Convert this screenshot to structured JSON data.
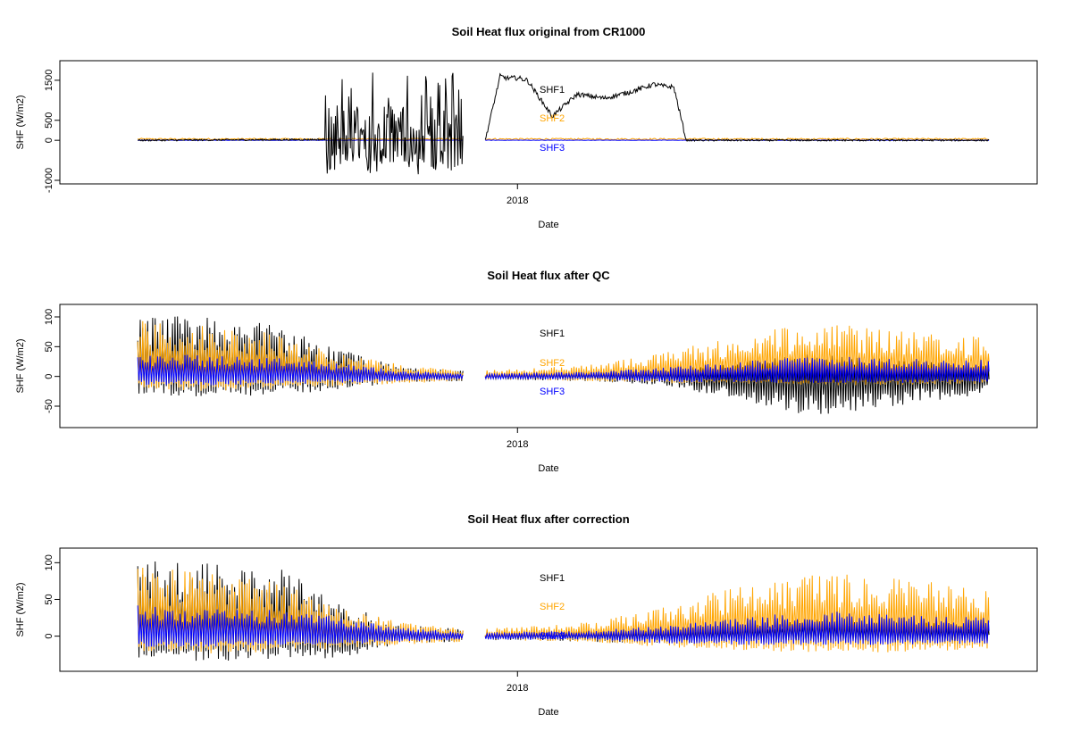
{
  "chart_data": [
    {
      "type": "line",
      "title": "Soil Heat flux original from CR1000",
      "xlabel": "Date",
      "ylabel": "SHF (W/m2)",
      "xlim": [
        "2017-07-15",
        "2018-07-15"
      ],
      "x_ticks": [
        {
          "value": "2018-01-01",
          "label": "2018"
        }
      ],
      "ylim": [
        -1000,
        1900
      ],
      "y_ticks": [
        {
          "value": -1000,
          "label": "-1000"
        },
        {
          "value": 0,
          "label": "0"
        },
        {
          "value": 500,
          "label": "500"
        },
        {
          "value": 1500,
          "label": "1500"
        }
      ],
      "legend": {
        "placement": "center",
        "entries": [
          {
            "label": "SHF1",
            "color": "#000000"
          },
          {
            "label": "SHF2",
            "color": "#FFA500"
          },
          {
            "label": "SHF3",
            "color": "#0000FF"
          }
        ]
      },
      "gaps": [
        [
          "2017-12-10",
          "2017-12-19"
        ]
      ],
      "series": [
        {
          "name": "SHF1",
          "color": "#000000",
          "amplitude_note": "raw",
          "x": [
            "2017-08-01",
            "2017-10-15",
            "2017-10-16",
            "2017-10-25",
            "2017-11-01",
            "2017-11-15",
            "2017-11-22",
            "2017-11-28",
            "2017-12-05",
            "2017-12-10",
            "2017-12-19",
            "2017-12-25",
            "2017-12-28",
            "2018-01-01",
            "2018-01-05",
            "2018-01-15",
            "2018-01-25",
            "2018-02-05",
            "2018-02-15",
            "2018-02-25",
            "2018-03-01",
            "2018-03-05",
            "2018-03-10",
            "2018-07-10"
          ],
          "y": [
            0,
            20,
            1850,
            -800,
            -700,
            -850,
            1250,
            1650,
            500,
            120,
            0,
            1600,
            1550,
            1560,
            1500,
            600,
            1150,
            1050,
            1200,
            1400,
            1350,
            1330,
            0,
            0
          ]
        },
        {
          "name": "SHF2",
          "color": "#FFA500",
          "x": [
            "2017-08-01",
            "2018-07-10"
          ],
          "y": [
            40,
            30
          ]
        },
        {
          "name": "SHF3",
          "color": "#0000FF",
          "x": [
            "2017-08-01",
            "2018-07-10"
          ],
          "y": [
            10,
            10
          ]
        }
      ]
    },
    {
      "type": "line",
      "title": "Soil Heat flux after QC",
      "xlabel": "Date",
      "ylabel": "SHF (W/m2)",
      "xlim": [
        "2017-07-15",
        "2018-07-15"
      ],
      "x_ticks": [
        {
          "value": "2018-01-01",
          "label": "2018"
        }
      ],
      "ylim": [
        -80,
        115
      ],
      "y_ticks": [
        {
          "value": -50,
          "label": "-50"
        },
        {
          "value": 0,
          "label": "0"
        },
        {
          "value": 50,
          "label": "50"
        },
        {
          "value": 100,
          "label": "100"
        }
      ],
      "legend": {
        "placement": "center",
        "entries": [
          {
            "label": "SHF1",
            "color": "#000000"
          },
          {
            "label": "SHF2",
            "color": "#FFA500"
          },
          {
            "label": "SHF3",
            "color": "#0000FF"
          }
        ]
      },
      "gaps": [
        [
          "2017-12-10",
          "2017-12-19"
        ]
      ],
      "series": [
        {
          "name": "SHF1",
          "color": "#000000",
          "x": [
            "2017-08-01",
            "2017-09-01",
            "2017-10-01",
            "2017-10-15",
            "2017-11-15",
            "2017-12-10",
            "2017-12-19",
            "2018-02-01",
            "2018-03-01",
            "2018-04-01",
            "2018-05-01",
            "2018-06-01",
            "2018-07-10"
          ],
          "max": [
            100,
            105,
            80,
            55,
            15,
            10,
            5,
            8,
            12,
            25,
            40,
            30,
            20
          ],
          "min": [
            -30,
            -35,
            -30,
            -25,
            -10,
            -8,
            -5,
            -8,
            -15,
            -40,
            -70,
            -50,
            -30
          ]
        },
        {
          "name": "SHF2",
          "color": "#FFA500",
          "x": [
            "2017-08-01",
            "2017-09-01",
            "2017-10-01",
            "2017-10-15",
            "2017-11-15",
            "2017-12-10",
            "2017-12-19",
            "2018-02-01",
            "2018-03-01",
            "2018-04-01",
            "2018-05-01",
            "2018-06-01",
            "2018-07-10"
          ],
          "max": [
            95,
            85,
            70,
            45,
            20,
            10,
            10,
            20,
            40,
            70,
            90,
            80,
            65
          ],
          "min": [
            -20,
            -25,
            -20,
            -18,
            -12,
            -8,
            -5,
            -8,
            -12,
            -12,
            -15,
            -15,
            -12
          ]
        },
        {
          "name": "SHF3",
          "color": "#0000FF",
          "x": [
            "2017-08-01",
            "2017-09-01",
            "2017-10-01",
            "2017-10-15",
            "2017-11-15",
            "2017-12-10",
            "2017-12-19",
            "2018-02-01",
            "2018-03-01",
            "2018-04-01",
            "2018-05-01",
            "2018-06-01",
            "2018-07-10"
          ],
          "max": [
            40,
            35,
            30,
            25,
            10,
            5,
            5,
            8,
            15,
            25,
            35,
            30,
            28
          ],
          "min": [
            -15,
            -15,
            -12,
            -12,
            -8,
            -5,
            -5,
            -5,
            -10,
            -10,
            -12,
            -12,
            -10
          ]
        }
      ]
    },
    {
      "type": "line",
      "title": "Soil Heat flux after correction",
      "xlabel": "Date",
      "ylabel": "SHF (W/m2)",
      "xlim": [
        "2017-07-15",
        "2018-07-15"
      ],
      "x_ticks": [
        {
          "value": "2018-01-01",
          "label": "2018"
        }
      ],
      "ylim": [
        -43,
        115
      ],
      "y_ticks": [
        {
          "value": 0,
          "label": "0"
        },
        {
          "value": 50,
          "label": "50"
        },
        {
          "value": 100,
          "label": "100"
        }
      ],
      "legend": {
        "placement": "center",
        "entries": [
          {
            "label": "SHF1",
            "color": "#000000"
          },
          {
            "label": "SHF2",
            "color": "#FFA500"
          },
          {
            "label": "SHF3",
            "color": "#0000FF"
          }
        ]
      },
      "gaps": [
        [
          "2017-12-10",
          "2017-12-19"
        ]
      ],
      "series": [
        {
          "name": "SHF1",
          "color": "#000000",
          "x": [
            "2017-08-01",
            "2017-09-01",
            "2017-10-01",
            "2017-10-15",
            "2017-11-15",
            "2017-12-10",
            "2017-12-19",
            "2018-02-01",
            "2018-03-01",
            "2018-04-01",
            "2018-05-01",
            "2018-06-01",
            "2018-07-10"
          ],
          "max": [
            100,
            110,
            90,
            55,
            15,
            10,
            5,
            8,
            10,
            15,
            25,
            20,
            15
          ],
          "min": [
            -30,
            -35,
            -30,
            -35,
            -10,
            -8,
            -5,
            -8,
            -10,
            -10,
            -12,
            -12,
            -10
          ]
        },
        {
          "name": "SHF2",
          "color": "#FFA500",
          "x": [
            "2017-08-01",
            "2017-09-01",
            "2017-10-01",
            "2017-10-15",
            "2017-11-15",
            "2017-12-10",
            "2017-12-19",
            "2018-02-01",
            "2018-03-01",
            "2018-04-01",
            "2018-05-01",
            "2018-06-01",
            "2018-07-10"
          ],
          "max": [
            95,
            85,
            70,
            45,
            20,
            10,
            10,
            20,
            40,
            70,
            90,
            80,
            65
          ],
          "min": [
            -20,
            -25,
            -20,
            -18,
            -12,
            -8,
            -5,
            -8,
            -15,
            -20,
            -22,
            -22,
            -18
          ]
        },
        {
          "name": "SHF3",
          "color": "#0000FF",
          "x": [
            "2017-08-01",
            "2017-09-01",
            "2017-10-01",
            "2017-10-15",
            "2017-11-15",
            "2017-12-10",
            "2017-12-19",
            "2018-02-01",
            "2018-03-01",
            "2018-04-01",
            "2018-05-01",
            "2018-06-01",
            "2018-07-10"
          ],
          "max": [
            45,
            40,
            35,
            30,
            12,
            5,
            5,
            8,
            15,
            25,
            35,
            30,
            28
          ],
          "min": [
            -15,
            -15,
            -12,
            -12,
            -8,
            -5,
            -5,
            -5,
            -10,
            -12,
            -12,
            -12,
            -10
          ]
        }
      ]
    }
  ]
}
